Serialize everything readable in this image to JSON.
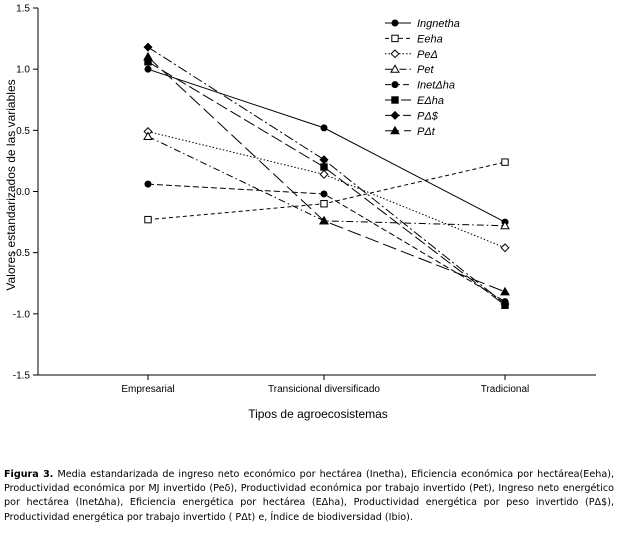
{
  "chart_data": {
    "type": "line",
    "xlabel": "Tipos de agroecosistemas",
    "ylabel": "Valores estandarizados de las variables",
    "categories": [
      "Empresarial",
      "Transicional diversificado",
      "Tradicional"
    ],
    "ylim": [
      -1.5,
      1.5
    ],
    "yticks": [
      "1.5",
      "1.0",
      "0.5",
      "0.0",
      "-0.5",
      "-1.0",
      "-1.5"
    ],
    "legend_position": "top-right",
    "series": [
      {
        "name": "Ingnetha",
        "values": [
          1.0,
          0.52,
          -0.25
        ],
        "marker": "circle-filled",
        "dash": "solid"
      },
      {
        "name": "Eeha",
        "values": [
          -0.23,
          -0.1,
          0.24
        ],
        "marker": "square-open",
        "dash": "short-dash"
      },
      {
        "name": "PeΔ",
        "values": [
          0.49,
          0.14,
          -0.46
        ],
        "marker": "diamond-open",
        "dash": "dot"
      },
      {
        "name": "Pet",
        "values": [
          0.45,
          -0.24,
          -0.28
        ],
        "marker": "triangle-open",
        "dash": "dash-dot"
      },
      {
        "name": "InetΔha",
        "values": [
          0.06,
          -0.02,
          -0.9
        ],
        "marker": "circle-filled",
        "dash": "dash"
      },
      {
        "name": "EΔha",
        "values": [
          1.06,
          0.2,
          -0.93
        ],
        "marker": "square-filled",
        "dash": "long-dash"
      },
      {
        "name": "PΔ$",
        "values": [
          1.18,
          0.26,
          -0.92
        ],
        "marker": "diamond-filled",
        "dash": "dash-dot-long"
      },
      {
        "name": "PΔt",
        "values": [
          1.1,
          -0.24,
          -0.82
        ],
        "marker": "triangle-filled",
        "dash": "long-dash-2"
      }
    ]
  },
  "caption": {
    "label": "Figura 3.",
    "text": "Media estandarizada de ingreso neto económico por hectárea (Inetha), Eficiencia económica por hectárea(Eeha), Productividad económica por MJ invertido (Peδ), Productividad económica por trabajo invertido (Pet), Ingreso neto energético por hectárea (InetΔha), Eficiencia energética por hectárea (EΔha), Productividad energética por peso invertido (PΔ$), Productividad energética por trabajo invertido ( PΔt) e, Índice de biodiversidad (Ibio)."
  }
}
